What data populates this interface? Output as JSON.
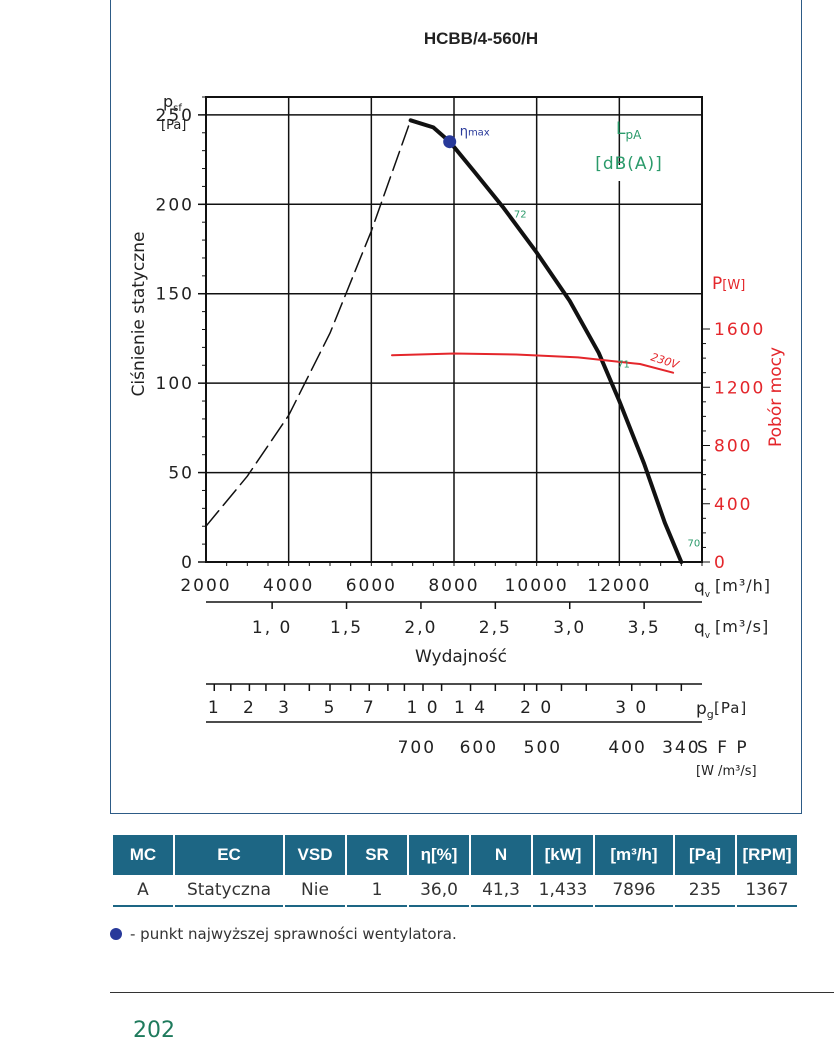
{
  "chart_data": {
    "type": "line",
    "title": "HCBB/4-560/H",
    "ylabel": "Ciśnienie statyczne",
    "xlabel": "Wydajność",
    "y_symbol": "p",
    "y_symbol_sub": "sf",
    "y_unit": "[Pa]",
    "x_unit_main": "[m³/h]",
    "x_unit_second": "[m³/s]",
    "q_symbol": "q",
    "q_sub": "v",
    "xlim": [
      2000,
      14000
    ],
    "ylim": [
      0,
      260
    ],
    "x_ticks": [
      2000,
      4000,
      6000,
      8000,
      10000,
      12000
    ],
    "x_tick_labels": [
      "2000",
      "4000",
      "6000",
      "8000",
      "10000",
      "12000"
    ],
    "y_ticks": [
      0,
      50,
      100,
      150,
      200,
      250
    ],
    "y_tick_labels": [
      "0",
      "50",
      "100",
      "150",
      "200",
      "250"
    ],
    "x2_ticks": [
      {
        "label": "1, 0",
        "value": 3600
      },
      {
        "label": "1,5",
        "value": 5400
      },
      {
        "label": "2,0",
        "value": 7200
      },
      {
        "label": "2,5",
        "value": 9000
      },
      {
        "label": "3,0",
        "value": 10800
      },
      {
        "label": "3,5",
        "value": 12600
      }
    ],
    "right_axis": {
      "label": "Pobór mocy",
      "symbol": "P",
      "unit": "[W]",
      "ylim": [
        0,
        1600
      ],
      "ticks": [
        0,
        400,
        800,
        1200,
        1600
      ],
      "tick_labels": [
        "0",
        "400",
        "800",
        "1200",
        "1600"
      ],
      "color": "#e4262b"
    },
    "lpa_label": "L",
    "lpa_sub": "pA",
    "lpa_unit": "[dB(A)]",
    "lpa_color": "#2a9a6a",
    "series": [
      {
        "name": "",
        "style": "dashed",
        "axis": "left",
        "x": [
          2000,
          3000,
          4000,
          5000,
          6000,
          6950
        ],
        "y": [
          20,
          48,
          82,
          128,
          185,
          247
        ]
      },
      {
        "name": "",
        "style": "solid",
        "axis": "left",
        "x": [
          6950,
          7500,
          7896,
          8500,
          9200,
          10000,
          10800,
          11500,
          12000,
          12600,
          13100,
          13500
        ],
        "y": [
          247,
          243,
          235,
          218,
          198,
          173,
          146,
          117,
          90,
          55,
          22,
          0
        ]
      },
      {
        "name": "230V",
        "style": "solid",
        "axis": "right",
        "x": [
          6500,
          8000,
          9500,
          11000,
          12500,
          13300
        ],
        "y": [
          1420,
          1432,
          1425,
          1405,
          1360,
          1300
        ]
      }
    ],
    "eta_point": {
      "x": 7896,
      "y": 235,
      "label": "η",
      "label_sub": "max"
    },
    "lpa_marks": [
      {
        "x": 9400,
        "y": 195,
        "label": "72"
      },
      {
        "x": 11900,
        "y": 111,
        "label": "71"
      },
      {
        "x": 13600,
        "y": 11,
        "label": "70"
      }
    ],
    "pg_scale": {
      "unit_symbol": "p",
      "unit_sub": "g",
      "unit": "[Pa]",
      "labels": [
        {
          "label": "1",
          "value": 2200
        },
        {
          "label": "2",
          "value": 3050
        },
        {
          "label": "3",
          "value": 3900
        },
        {
          "label": "5",
          "value": 5000
        },
        {
          "label": "7",
          "value": 5950
        },
        {
          "label": "1 0",
          "value": 7250
        },
        {
          "label": "1 4",
          "value": 8400
        },
        {
          "label": "2 0",
          "value": 10000
        },
        {
          "label": "3 0",
          "value": 12300
        }
      ],
      "ticks": [
        2200,
        2600,
        3050,
        3450,
        3900,
        4500,
        5000,
        5500,
        5950,
        6400,
        6800,
        7250,
        7700,
        8400,
        9000,
        9700,
        10000,
        10600,
        11200,
        12300,
        12900,
        13500
      ]
    },
    "sfp_scale": {
      "label": "S F P",
      "unit": "[W /m³/s]",
      "labels": [
        {
          "label": "700",
          "value": 7100
        },
        {
          "label": "600",
          "value": 8600
        },
        {
          "label": "500",
          "value": 10150
        },
        {
          "label": "400",
          "value": 12200
        },
        {
          "label": "340",
          "value": 13500
        }
      ]
    }
  },
  "table": {
    "headers": [
      "MC",
      "EC",
      "VSD",
      "SR",
      "η[%]",
      "N",
      "[kW]",
      "[m³/h]",
      "[Pa]",
      "[RPM]"
    ],
    "rows": [
      [
        "A",
        "Statyczna",
        "Nie",
        "1",
        "36,0",
        "41,3",
        "1,433",
        "7896",
        "235",
        "1367"
      ]
    ]
  },
  "legend_note": "- punkt najwyższej sprawności wentylatora.",
  "page_number": "202"
}
